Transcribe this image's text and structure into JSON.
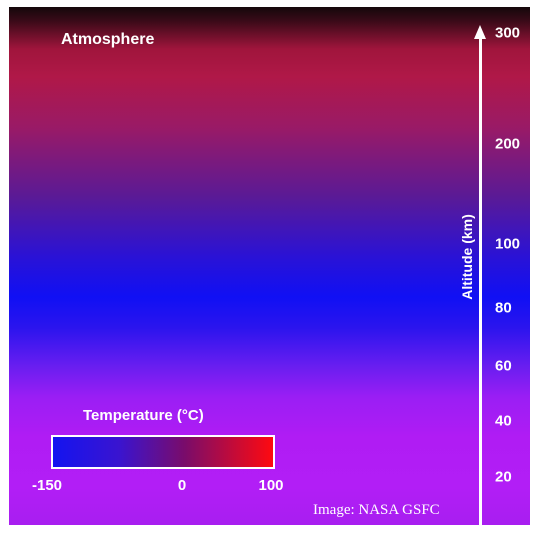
{
  "title": "Atmosphere",
  "axis": {
    "title": "Altitude (km)",
    "ticks": [
      "300",
      "200",
      "100",
      "80",
      "60",
      "40",
      "20"
    ]
  },
  "legend": {
    "title": "Temperature (°C)",
    "labels": [
      "-150",
      "0",
      "100"
    ]
  },
  "credit": "Image: NASA GSFC",
  "colors": {
    "cold": "#1414f0",
    "hot": "#ff0a10",
    "upper": "#b01848",
    "lower": "#b21ef6"
  }
}
